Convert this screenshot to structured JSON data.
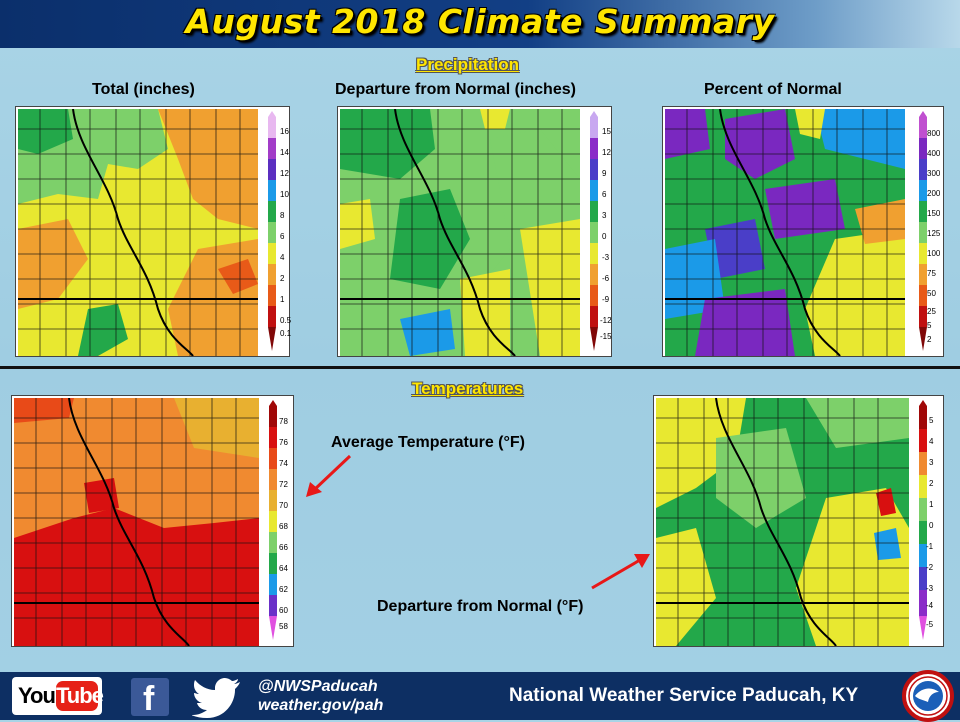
{
  "header": {
    "title": "August 2018 Climate Summary"
  },
  "sections": {
    "precipitation": "Precipitation",
    "temperatures": "Temperatures"
  },
  "maps": {
    "total": {
      "title": "Total (inches)",
      "legend": [
        "16",
        "14",
        "12",
        "10",
        "8",
        "6",
        "4",
        "2",
        "1",
        "0.5",
        "0.1"
      ],
      "colors": [
        "#e8b8f0",
        "#a23cc8",
        "#5b2fc0",
        "#1b9ae8",
        "#23a84a",
        "#7dd06a",
        "#e8e830",
        "#f0a030",
        "#e85a18",
        "#c01010",
        "#800808"
      ]
    },
    "departure": {
      "title": "Departure from Normal (inches)",
      "legend": [
        "15",
        "12",
        "9",
        "6",
        "3",
        "0",
        "-3",
        "-6",
        "-9",
        "-12",
        "-15"
      ],
      "colors": [
        "#c8a8f0",
        "#8a2cc8",
        "#4a3ec8",
        "#1b9ae8",
        "#23a84a",
        "#7dd06a",
        "#e8e830",
        "#f0a030",
        "#e85a18",
        "#c01010",
        "#800808"
      ]
    },
    "percent": {
      "title": "Percent of Normal",
      "legend": [
        "800",
        "400",
        "300",
        "200",
        "150",
        "125",
        "100",
        "75",
        "50",
        "25",
        "5",
        "2"
      ],
      "colors": [
        "#c050d0",
        "#7a28c0",
        "#4a3ec8",
        "#1b9ae8",
        "#23a84a",
        "#7dd06a",
        "#e8e830",
        "#f0a030",
        "#e85a18",
        "#c01010",
        "#800808"
      ]
    },
    "avg_temp": {
      "legend": [
        "78",
        "76",
        "74",
        "72",
        "70",
        "68",
        "66",
        "64",
        "62",
        "60",
        "58"
      ],
      "colors": [
        "#a00808",
        "#d81010",
        "#e84a18",
        "#f08a30",
        "#e8b030",
        "#e8e830",
        "#7dd06a",
        "#23a84a",
        "#1b9ae8",
        "#6a30c8",
        "#e050e0"
      ]
    },
    "temp_departure": {
      "legend": [
        "5",
        "4",
        "3",
        "2",
        "1",
        "0",
        "-1",
        "-2",
        "-3",
        "-4",
        "-5"
      ],
      "colors": [
        "#a00808",
        "#d81010",
        "#f08a30",
        "#e8e830",
        "#7dd06a",
        "#23a84a",
        "#1b9ae8",
        "#4a3ec8",
        "#8a2cc8",
        "#e050e0"
      ]
    }
  },
  "annotations": {
    "avg_temp": "Average Temperature (°F)",
    "temp_departure": "Departure from Normal (°F)"
  },
  "footer": {
    "youtube_you": "You",
    "youtube_tube": "Tube",
    "facebook_glyph": "f",
    "handle": "@NWSPaducah",
    "website": "weather.gov/pah",
    "org": "National Weather Service Paducah, KY"
  }
}
